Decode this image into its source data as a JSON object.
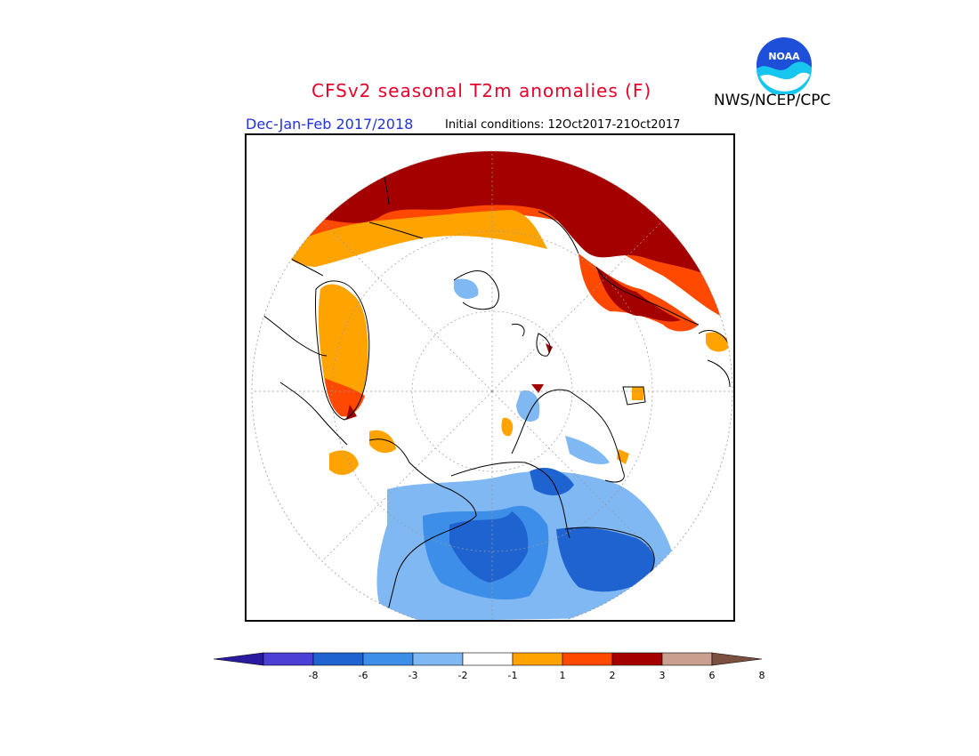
{
  "header": {
    "title": "CFSv2 seasonal T2m anomalies (F)",
    "agency": "NWS/NCEP/CPC",
    "season": "Dec-Jan-Feb 2017/2018",
    "initial_conditions": "Initial conditions: 12Oct2017-21Oct2017",
    "logo_text": "NOAA"
  },
  "legend": {
    "colors": [
      "#2a1aa0",
      "#4b3fd6",
      "#1f63d0",
      "#3d8ee8",
      "#7fb8f2",
      "#ffffff",
      "#ffa300",
      "#ff4800",
      "#a50000",
      "#c9a090",
      "#7b5040"
    ],
    "labels": [
      "-8",
      "-6",
      "-3",
      "-2",
      "-1",
      "1",
      "2",
      "3",
      "6",
      "8"
    ]
  }
}
